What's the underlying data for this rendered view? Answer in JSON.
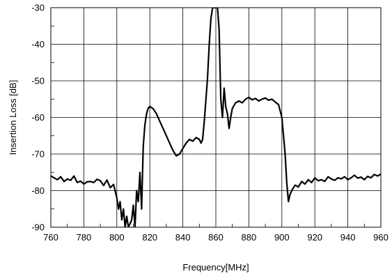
{
  "chart_data": {
    "type": "line",
    "title": "",
    "xlabel": "Frequency[MHz]",
    "ylabel": "Insertion Loss [dB]",
    "xlim": [
      760,
      960
    ],
    "ylim": [
      -90,
      -30
    ],
    "xticks": [
      760,
      780,
      800,
      820,
      840,
      860,
      880,
      900,
      920,
      940,
      960
    ],
    "yticks": [
      -90,
      -80,
      -70,
      -60,
      -50,
      -40,
      -30
    ],
    "grid": true,
    "legend": "none",
    "line_color": "#000000",
    "series": [
      {
        "x": [
          760,
          762,
          764,
          766,
          768,
          770,
          772,
          774,
          776,
          778,
          780,
          782,
          784,
          786,
          788,
          790,
          792,
          794,
          796,
          798,
          800,
          801,
          802,
          803,
          804,
          805,
          806,
          807,
          808,
          809,
          810,
          811,
          812,
          813,
          814,
          815,
          816,
          817,
          818,
          819,
          820,
          822,
          824,
          826,
          828,
          830,
          832,
          834,
          836,
          838,
          840,
          842,
          844,
          846,
          848,
          850,
          851,
          852,
          853,
          854,
          855,
          856,
          857,
          858,
          859,
          860,
          861,
          862,
          863,
          864,
          865,
          866,
          867,
          868,
          869,
          870,
          872,
          874,
          876,
          878,
          880,
          882,
          884,
          886,
          888,
          890,
          892,
          894,
          896,
          898,
          900,
          901,
          902,
          903,
          904,
          905,
          906,
          908,
          910,
          912,
          914,
          916,
          918,
          920,
          922,
          924,
          926,
          928,
          930,
          932,
          934,
          936,
          938,
          940,
          942,
          944,
          946,
          948,
          950,
          952,
          954,
          956,
          958,
          960
        ],
        "y": [
          -76,
          -76.5,
          -77,
          -76.2,
          -77.5,
          -76.8,
          -77.2,
          -76,
          -77.8,
          -77.4,
          -78.2,
          -77.6,
          -77.5,
          -77.8,
          -76.9,
          -77.3,
          -78.6,
          -77.1,
          -79.2,
          -78.3,
          -82,
          -85,
          -83,
          -88,
          -85,
          -90,
          -87,
          -90,
          -89,
          -88,
          -84,
          -90,
          -80,
          -83,
          -75,
          -85,
          -68,
          -62,
          -59,
          -57.5,
          -57,
          -57.6,
          -59,
          -61,
          -63,
          -65,
          -67,
          -69,
          -70.5,
          -70,
          -68.5,
          -67,
          -66,
          -66.5,
          -65.5,
          -66,
          -67,
          -66,
          -61,
          -55,
          -49,
          -40,
          -33,
          -30,
          -30,
          -30,
          -30,
          -36,
          -55,
          -60,
          -52,
          -57,
          -59,
          -63,
          -60,
          -57.5,
          -56,
          -55.5,
          -56,
          -55,
          -54.5,
          -55.2,
          -54.8,
          -55.5,
          -55,
          -54.7,
          -55.3,
          -55,
          -55.8,
          -56.5,
          -60,
          -65,
          -70,
          -78,
          -83,
          -81,
          -80,
          -78.5,
          -79,
          -77.5,
          -78.2,
          -77,
          -77.8,
          -76.5,
          -77.3,
          -77,
          -77.5,
          -76.2,
          -76.8,
          -77.2,
          -76.5,
          -76.8,
          -76.2,
          -77,
          -76.5,
          -75.8,
          -76.6,
          -76.3,
          -77,
          -76.1,
          -76.5,
          -75.6,
          -76,
          -75.5
        ]
      }
    ]
  }
}
